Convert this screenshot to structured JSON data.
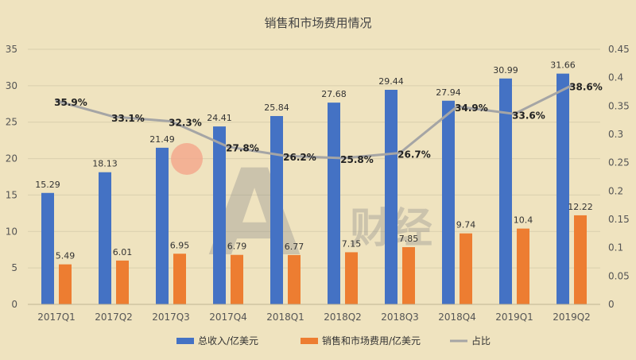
{
  "chart_data": {
    "type": "bar",
    "title": "销售和市场费用情况",
    "categories": [
      "2017Q1",
      "2017Q2",
      "2017Q3",
      "2017Q4",
      "2018Q1",
      "2018Q2",
      "2018Q3",
      "2018Q4",
      "2019Q1",
      "2019Q2"
    ],
    "series": [
      {
        "name": "总收入/亿美元",
        "type": "bar",
        "axis": "left",
        "color": "#4472c4",
        "values": [
          15.29,
          18.13,
          21.49,
          24.41,
          25.84,
          27.68,
          29.44,
          27.94,
          30.99,
          31.66
        ],
        "labels": [
          "15.29",
          "18.13",
          "21.49",
          "24.41",
          "25.84",
          "27.68",
          "29.44",
          "27.94",
          "30.99",
          "31.66"
        ]
      },
      {
        "name": "销售和市场费用/亿美元",
        "type": "bar",
        "axis": "left",
        "color": "#ed7d31",
        "values": [
          5.49,
          6.01,
          6.95,
          6.79,
          6.77,
          7.15,
          7.85,
          9.74,
          10.4,
          12.22
        ],
        "labels": [
          "5.49",
          "6.01",
          "6.95",
          "6.79",
          "6.77",
          "7.15",
          "7.85",
          "9.74",
          "10.4",
          "12.22"
        ]
      },
      {
        "name": "占比",
        "type": "line",
        "axis": "right",
        "color": "#a5a5a5",
        "values": [
          0.359,
          0.331,
          0.323,
          0.278,
          0.262,
          0.258,
          0.267,
          0.349,
          0.336,
          0.386
        ],
        "labels": [
          "35.9%",
          "33.1%",
          "32.3%",
          "27.8%",
          "26.2%",
          "25.8%",
          "26.7%",
          "34.9%",
          "33.6%",
          "38.6%"
        ]
      }
    ],
    "y_left": {
      "min": 0,
      "max": 35,
      "ticks": [
        "0",
        "5",
        "10",
        "15",
        "20",
        "25",
        "30",
        "35"
      ]
    },
    "y_right": {
      "min": 0,
      "max": 0.45,
      "ticks": [
        "0",
        "0.05",
        "0.1",
        "0.15",
        "0.2",
        "0.25",
        "0.3",
        "0.35",
        "0.4",
        "0.45"
      ]
    },
    "grid": true,
    "legend_position": "bottom"
  },
  "watermark": {
    "text": "财经"
  }
}
